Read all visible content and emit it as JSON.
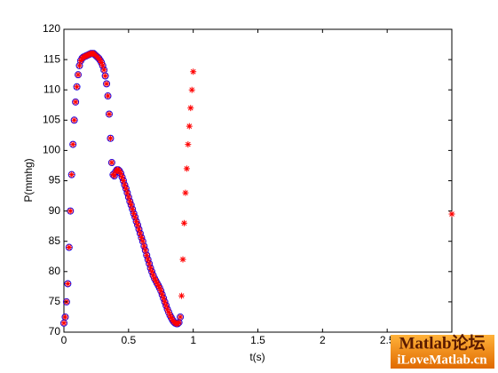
{
  "chart_data": {
    "type": "scatter",
    "xlabel": "t(s)",
    "ylabel": "P(mmhg)",
    "xlim": [
      0,
      3
    ],
    "ylim": [
      70,
      120
    ],
    "xticks": [
      0,
      0.5,
      1,
      1.5,
      2,
      2.5,
      3
    ],
    "yticks": [
      70,
      75,
      80,
      85,
      90,
      95,
      100,
      105,
      110,
      115,
      120
    ],
    "series": [
      {
        "color": "#0000ff",
        "marker": "circle",
        "x": [
          0,
          0.01,
          0.02,
          0.03,
          0.04,
          0.05,
          0.06,
          0.07,
          0.08,
          0.09,
          0.1,
          0.11,
          0.12,
          0.13,
          0.14,
          0.15,
          0.16,
          0.17,
          0.18,
          0.19,
          0.2,
          0.21,
          0.22,
          0.23,
          0.24,
          0.25,
          0.26,
          0.27,
          0.28,
          0.29,
          0.3,
          0.31,
          0.32,
          0.33,
          0.34,
          0.35,
          0.36,
          0.37,
          0.38,
          0.39,
          0.4,
          0.41,
          0.42,
          0.43,
          0.44,
          0.45,
          0.46,
          0.47,
          0.48,
          0.49,
          0.5,
          0.51,
          0.52,
          0.53,
          0.54,
          0.55,
          0.56,
          0.57,
          0.58,
          0.59,
          0.6,
          0.61,
          0.62,
          0.63,
          0.64,
          0.65,
          0.66,
          0.67,
          0.68,
          0.69,
          0.7,
          0.71,
          0.72,
          0.73,
          0.74,
          0.75,
          0.76,
          0.77,
          0.78,
          0.79,
          0.8,
          0.81,
          0.82,
          0.83,
          0.84,
          0.85,
          0.86,
          0.87,
          0.88,
          0.89,
          0.9
        ],
        "values": [
          71.5,
          72.5,
          75,
          78,
          84,
          90,
          96,
          101,
          105,
          108,
          110.5,
          112.5,
          114,
          114.8,
          115.2,
          115.4,
          115.5,
          115.6,
          115.7,
          115.8,
          115.9,
          116,
          116,
          116,
          115.8,
          115.6,
          115.4,
          115.2,
          114.9,
          114.5,
          114,
          113.3,
          112.3,
          111,
          109,
          106,
          102,
          98,
          96,
          95.8,
          96.5,
          96.8,
          96.8,
          96.6,
          96.2,
          95.6,
          95,
          94.3,
          93.7,
          93,
          92.3,
          91.6,
          91,
          90.3,
          89.6,
          89,
          88.3,
          87.7,
          87,
          86.3,
          85.6,
          85,
          84.2,
          83.5,
          82.7,
          82,
          81.3,
          80.6,
          80,
          79.4,
          78.9,
          78.5,
          78.1,
          77.7,
          77.3,
          76.8,
          76.2,
          75.6,
          75,
          74.4,
          73.8,
          73.3,
          72.8,
          72.4,
          72,
          71.7,
          71.5,
          71.4,
          71.4,
          71.6,
          72.5
        ]
      },
      {
        "color": "#ff0000",
        "marker": "star",
        "x": [
          0,
          0.01,
          0.02,
          0.03,
          0.04,
          0.05,
          0.06,
          0.07,
          0.08,
          0.09,
          0.1,
          0.11,
          0.12,
          0.13,
          0.14,
          0.15,
          0.16,
          0.17,
          0.18,
          0.19,
          0.2,
          0.21,
          0.22,
          0.23,
          0.24,
          0.25,
          0.26,
          0.27,
          0.28,
          0.29,
          0.3,
          0.31,
          0.32,
          0.33,
          0.34,
          0.35,
          0.36,
          0.37,
          0.38,
          0.39,
          0.4,
          0.41,
          0.42,
          0.43,
          0.44,
          0.45,
          0.46,
          0.47,
          0.48,
          0.49,
          0.5,
          0.51,
          0.52,
          0.53,
          0.54,
          0.55,
          0.56,
          0.57,
          0.58,
          0.59,
          0.6,
          0.61,
          0.62,
          0.63,
          0.64,
          0.65,
          0.66,
          0.67,
          0.68,
          0.69,
          0.7,
          0.71,
          0.72,
          0.73,
          0.74,
          0.75,
          0.76,
          0.77,
          0.78,
          0.79,
          0.8,
          0.81,
          0.82,
          0.83,
          0.84,
          0.85,
          0.86,
          0.87,
          0.88,
          0.89,
          0.9,
          0.91,
          0.92,
          0.93,
          0.94,
          0.95,
          0.96,
          0.97,
          0.98,
          0.99,
          1,
          3
        ],
        "values": [
          71.5,
          72.5,
          75,
          78,
          84,
          90,
          96,
          101,
          105,
          108,
          110.5,
          112.5,
          114,
          114.8,
          115.2,
          115.4,
          115.5,
          115.6,
          115.7,
          115.8,
          115.9,
          116,
          116,
          116,
          115.8,
          115.6,
          115.4,
          115.2,
          114.9,
          114.5,
          114,
          113.3,
          112.3,
          111,
          109,
          106,
          102,
          98,
          96,
          95.8,
          96.5,
          96.8,
          96.8,
          96.6,
          96.2,
          95.6,
          95,
          94.3,
          93.7,
          93,
          92.3,
          91.6,
          91,
          90.3,
          89.6,
          89,
          88.3,
          87.7,
          87,
          86.3,
          85.6,
          85,
          84.2,
          83.5,
          82.7,
          82,
          81.3,
          80.6,
          80,
          79.4,
          78.9,
          78.5,
          78.1,
          77.7,
          77.3,
          76.8,
          76.2,
          75.6,
          75,
          74.4,
          73.8,
          73.3,
          72.8,
          72.4,
          72,
          71.7,
          71.5,
          71.4,
          71.4,
          71.6,
          72.5,
          76,
          82,
          88,
          93,
          97,
          101,
          104,
          107,
          110,
          113,
          89.5
        ]
      }
    ]
  },
  "watermark": {
    "line1": "Matlab论坛",
    "line2": "iLoveMatlab.cn"
  }
}
